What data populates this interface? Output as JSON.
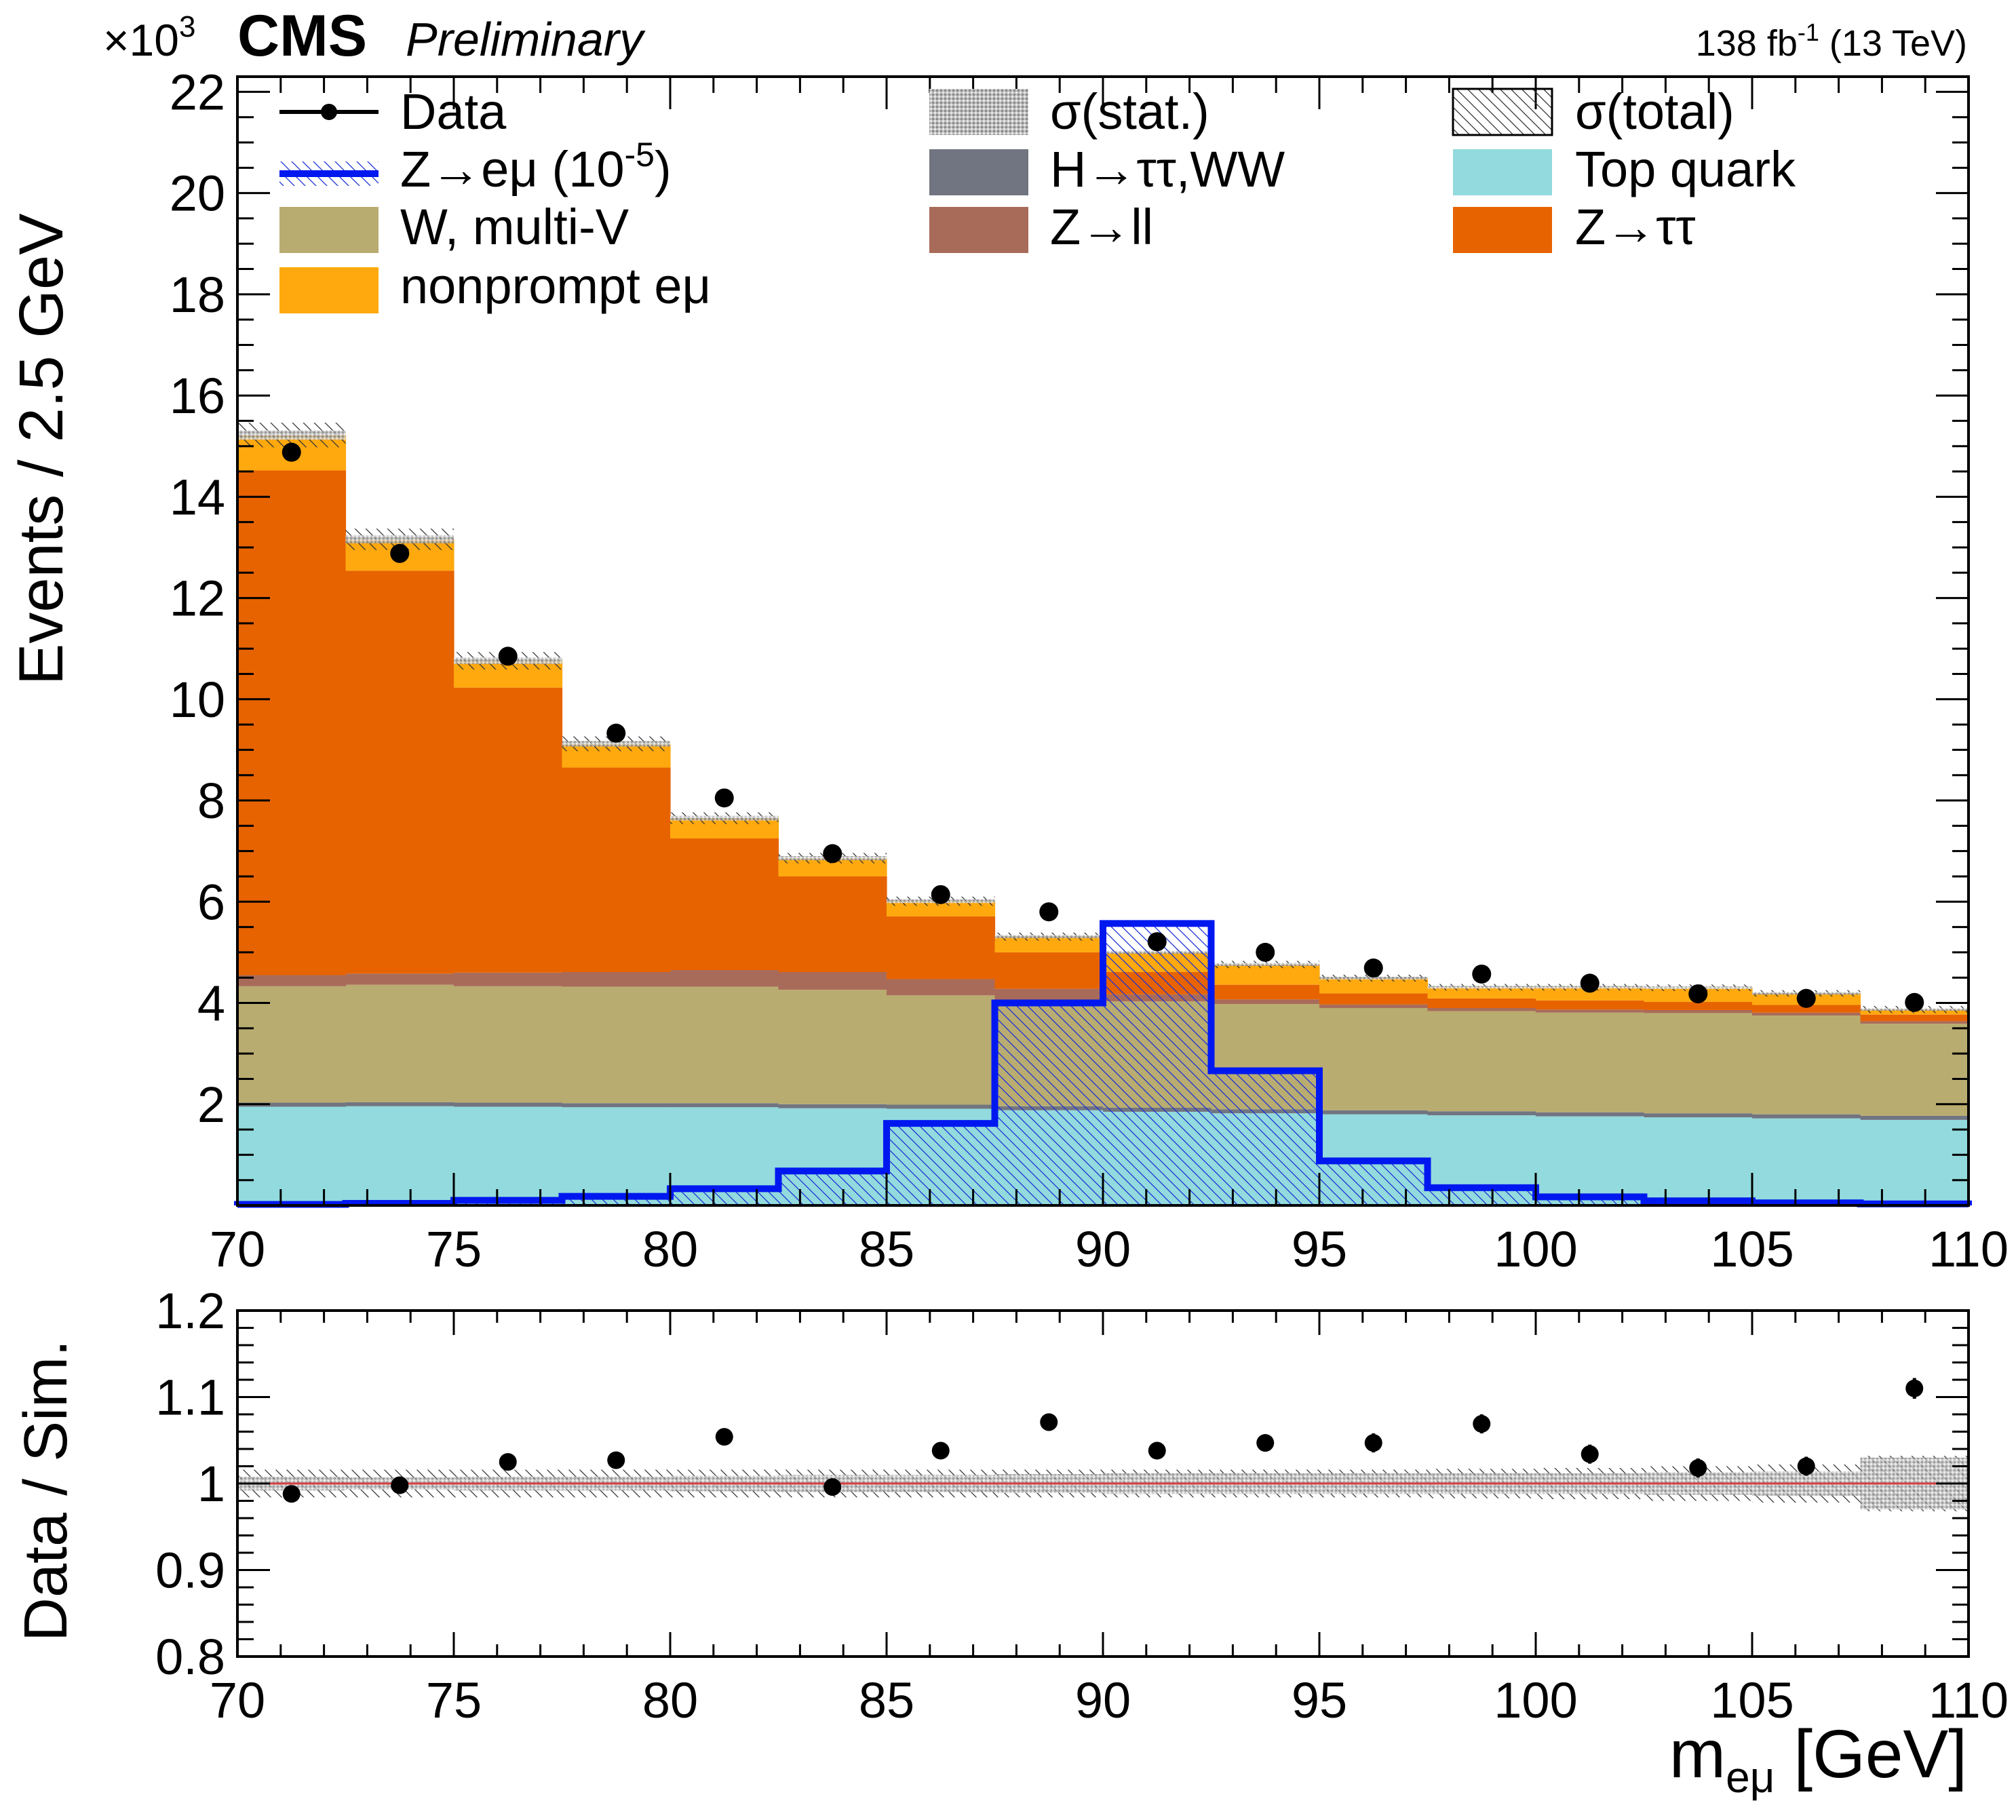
{
  "header": {
    "experiment": "CMS",
    "status": "Preliminary",
    "lumi_value": "138",
    "lumi_unit": "fb",
    "lumi_exp": "-1",
    "energy": "(13 TeV)",
    "scale": "×10",
    "scale_exp": "3"
  },
  "colors": {
    "ztautau": "#e76300",
    "nonprompt": "#ffa90e",
    "zll": "#a96b59",
    "hww": "#717581",
    "wmultiv": "#b9ac70",
    "top": "#92dadd",
    "signal": "#0018f0",
    "data": "#000000",
    "unity_line": "#d94040"
  },
  "legend": [
    {
      "key": "data",
      "text": "Data"
    },
    {
      "key": "stat",
      "text": "σ(stat.)"
    },
    {
      "key": "total",
      "text": "σ(total)"
    },
    {
      "key": "signal",
      "text": "Z→eμ (10",
      "exp": "-5",
      "tail": ")"
    },
    {
      "key": "hww",
      "text": "H→ττ,WW"
    },
    {
      "key": "top",
      "text": "Top quark"
    },
    {
      "key": "wmultiv",
      "text": "W, multi-V"
    },
    {
      "key": "zll",
      "text": "Z→ll"
    },
    {
      "key": "ztautau",
      "text": "Z→ττ"
    },
    {
      "key": "nonprompt",
      "text": "nonprompt eμ"
    }
  ],
  "chart_data": [
    {
      "type": "stacked-histogram",
      "panel": "main",
      "ylabel": "Events / 2.5 GeV",
      "y_scale_factor": 1000,
      "xlim": [
        70,
        110
      ],
      "ylim": [
        0,
        22.3
      ],
      "bin_edges": [
        70,
        72.5,
        75,
        77.5,
        80,
        82.5,
        85,
        87.5,
        90,
        92.5,
        95,
        97.5,
        100,
        102.5,
        105,
        107.5,
        110
      ],
      "x_ticks": [
        70,
        75,
        80,
        85,
        90,
        95,
        100,
        105,
        110
      ],
      "y_ticks": [
        2,
        4,
        6,
        8,
        10,
        12,
        14,
        16,
        18,
        20,
        22
      ],
      "stack_order": [
        "top",
        "hww",
        "wmultiv",
        "zll",
        "ztautau",
        "nonprompt"
      ],
      "series": [
        {
          "key": "top",
          "name": "Top quark",
          "values": [
            1.95,
            1.96,
            1.95,
            1.94,
            1.94,
            1.92,
            1.91,
            1.88,
            1.85,
            1.82,
            1.8,
            1.78,
            1.76,
            1.74,
            1.72,
            1.69
          ]
        },
        {
          "key": "hww",
          "name": "H→ττ,WW",
          "values": [
            0.08,
            0.08,
            0.08,
            0.08,
            0.08,
            0.08,
            0.08,
            0.08,
            0.08,
            0.08,
            0.08,
            0.08,
            0.08,
            0.08,
            0.08,
            0.08
          ]
        },
        {
          "key": "wmultiv",
          "name": "W, multi-V",
          "values": [
            2.3,
            2.32,
            2.3,
            2.3,
            2.3,
            2.26,
            2.16,
            2.09,
            2.1,
            2.08,
            2.02,
            1.98,
            1.97,
            1.98,
            1.95,
            1.82
          ]
        },
        {
          "key": "zll",
          "name": "Z→ll",
          "values": [
            0.22,
            0.22,
            0.27,
            0.29,
            0.33,
            0.35,
            0.32,
            0.23,
            0.14,
            0.09,
            0.07,
            0.06,
            0.06,
            0.06,
            0.06,
            0.05
          ]
        },
        {
          "key": "ztautau",
          "name": "Z→ττ",
          "values": [
            9.97,
            7.96,
            5.63,
            4.04,
            2.6,
            1.89,
            1.24,
            0.72,
            0.44,
            0.29,
            0.22,
            0.19,
            0.18,
            0.16,
            0.15,
            0.13
          ]
        },
        {
          "key": "nonprompt",
          "name": "nonprompt eμ",
          "values": [
            0.7,
            0.62,
            0.53,
            0.47,
            0.4,
            0.36,
            0.3,
            0.31,
            0.39,
            0.4,
            0.3,
            0.22,
            0.26,
            0.28,
            0.23,
            0.1
          ]
        }
      ],
      "mc_total": [
        15.22,
        13.16,
        10.76,
        9.12,
        7.65,
        6.86,
        6.01,
        5.31,
        5.0,
        4.76,
        4.49,
        4.31,
        4.31,
        4.3,
        4.19,
        3.87
      ],
      "signal": {
        "key": "signal",
        "name": "Z→eμ (10^-5)",
        "values": [
          0.02,
          0.04,
          0.1,
          0.18,
          0.33,
          0.68,
          1.62,
          4.0,
          5.57,
          2.66,
          0.88,
          0.35,
          0.17,
          0.09,
          0.05,
          0.03
        ]
      },
      "data": {
        "x": [
          71.25,
          73.75,
          76.25,
          78.75,
          81.25,
          83.75,
          86.25,
          88.75,
          91.25,
          93.75,
          96.25,
          98.75,
          101.25,
          103.75,
          106.25,
          108.75
        ],
        "values": [
          14.88,
          12.88,
          10.85,
          9.33,
          8.05,
          6.95,
          6.14,
          5.8,
          5.21,
          5.0,
          4.69,
          4.57,
          4.39,
          4.18,
          4.09,
          4.01
        ]
      },
      "stat_unc_rel": 0.006,
      "total_unc_rel": [
        0.016,
        0.016,
        0.016,
        0.016,
        0.015,
        0.015,
        0.015,
        0.015,
        0.015,
        0.015,
        0.015,
        0.015,
        0.015,
        0.015,
        0.015,
        0.018
      ]
    },
    {
      "type": "scatter",
      "panel": "ratio",
      "xlabel": "m_eμ [GeV]",
      "ylabel": "Data / Sim.",
      "xlim": [
        70,
        110
      ],
      "ylim": [
        0.8,
        1.2
      ],
      "x_ticks": [
        70,
        75,
        80,
        85,
        90,
        95,
        100,
        105,
        110
      ],
      "y_ticks": [
        0.8,
        0.9,
        1.0,
        1.1,
        1.2
      ],
      "y_tick_labels": [
        "0.8",
        "0.9",
        "1",
        "1.1",
        "1.2"
      ],
      "x": [
        71.25,
        73.75,
        76.25,
        78.75,
        81.25,
        83.75,
        86.25,
        88.75,
        91.25,
        93.75,
        96.25,
        98.75,
        101.25,
        103.75,
        106.25,
        108.75
      ],
      "values": [
        0.988,
        0.998,
        1.025,
        1.027,
        1.054,
        0.996,
        1.038,
        1.071,
        1.038,
        1.047,
        1.047,
        1.069,
        1.034,
        1.018,
        1.02,
        1.11
      ],
      "errors": [
        0.006,
        0.006,
        0.007,
        0.007,
        0.008,
        0.009,
        0.009,
        0.01,
        0.01,
        0.01,
        0.011,
        0.011,
        0.011,
        0.011,
        0.011,
        0.012
      ],
      "stat_band": [
        0.008,
        0.007,
        0.008,
        0.008,
        0.009,
        0.01,
        0.01,
        0.011,
        0.012,
        0.012,
        0.012,
        0.012,
        0.012,
        0.013,
        0.014,
        0.03
      ],
      "total_band": [
        0.016,
        0.016,
        0.016,
        0.016,
        0.016,
        0.016,
        0.016,
        0.016,
        0.016,
        0.016,
        0.016,
        0.017,
        0.018,
        0.02,
        0.022,
        0.032
      ]
    }
  ]
}
